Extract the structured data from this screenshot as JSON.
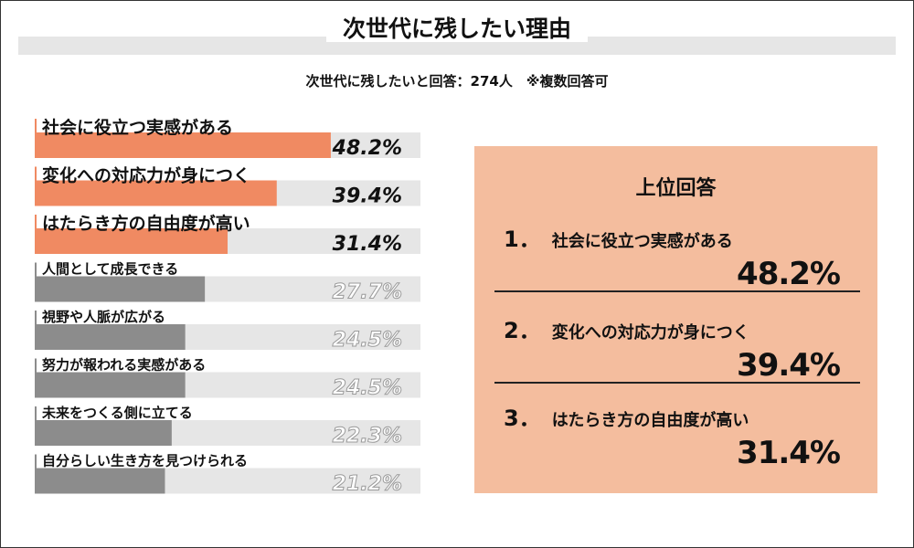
{
  "title": "次世代に残したい理由",
  "subtitle": "次世代に残したいと回答：274人　※複数回答可",
  "colors": {
    "highlight": "#f08a62",
    "normal": "#8c8c8c",
    "track": "#e6e6e6",
    "panel": "#f4bd9e"
  },
  "chart_data": {
    "type": "bar",
    "orientation": "horizontal",
    "categories": [
      "社会に役立つ実感がある",
      "変化への対応力が身につく",
      "はたらき方の自由度が高い",
      "人間として成長できる",
      "視野や人脈が広がる",
      "努力が報われる実感がある",
      "未来をつくる側に立てる",
      "自分らしい生き方を見つけられる"
    ],
    "values": [
      48.2,
      39.4,
      31.4,
      27.7,
      24.5,
      24.5,
      22.3,
      21.2
    ],
    "labels": [
      "48.2%",
      "39.4%",
      "31.4%",
      "27.7%",
      "24.5%",
      "24.5%",
      "22.3%",
      "21.2%"
    ],
    "highlight_top": 3,
    "xlim": [
      0,
      100
    ]
  },
  "panel": {
    "title": "上位回答",
    "items": [
      {
        "num": "1．",
        "label": "社会に役立つ実感がある",
        "value": "48.2%"
      },
      {
        "num": "2．",
        "label": "変化への対応力が身につく",
        "value": "39.4%"
      },
      {
        "num": "3．",
        "label": "はたらき方の自由度が高い",
        "value": "31.4%"
      }
    ]
  }
}
